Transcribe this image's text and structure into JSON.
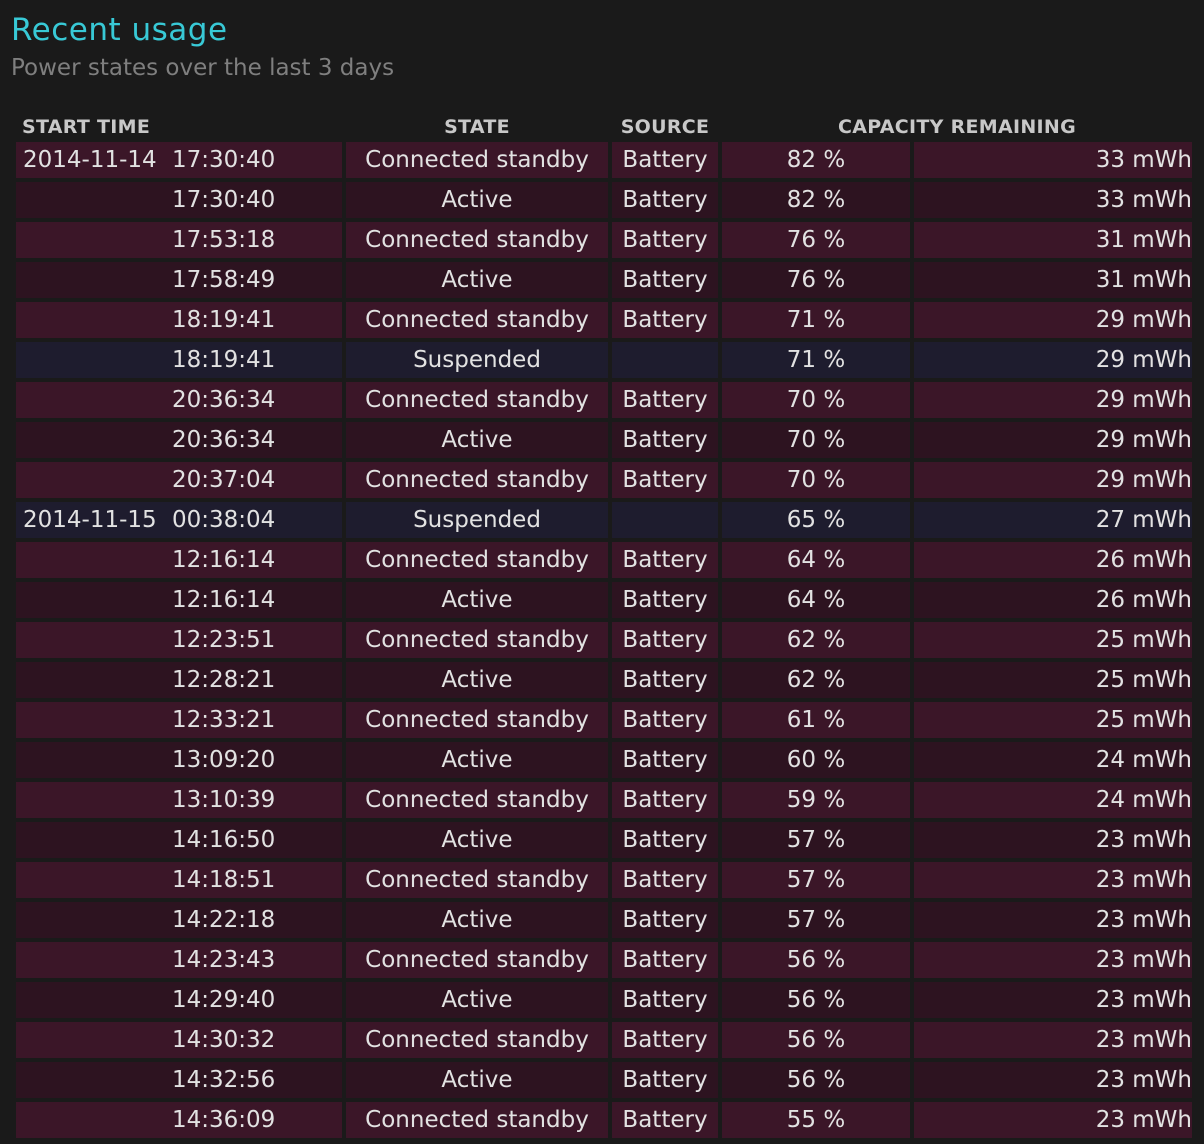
{
  "header": {
    "title": "Recent usage",
    "subtitle": "Power states over the last 3 days"
  },
  "table": {
    "columns": {
      "start_time": "START TIME",
      "state": "STATE",
      "source": "SOURCE",
      "capacity": "CAPACITY REMAINING"
    },
    "rows": [
      {
        "date": "2014-11-14",
        "time": "17:30:40",
        "state": "Connected standby",
        "source": "Battery",
        "percent": "82 %",
        "mwh": "33 mWh"
      },
      {
        "date": "",
        "time": "17:30:40",
        "state": "Active",
        "source": "Battery",
        "percent": "82 %",
        "mwh": "33 mWh"
      },
      {
        "date": "",
        "time": "17:53:18",
        "state": "Connected standby",
        "source": "Battery",
        "percent": "76 %",
        "mwh": "31 mWh"
      },
      {
        "date": "",
        "time": "17:58:49",
        "state": "Active",
        "source": "Battery",
        "percent": "76 %",
        "mwh": "31 mWh"
      },
      {
        "date": "",
        "time": "18:19:41",
        "state": "Connected standby",
        "source": "Battery",
        "percent": "71 %",
        "mwh": "29 mWh"
      },
      {
        "date": "",
        "time": "18:19:41",
        "state": "Suspended",
        "source": "",
        "percent": "71 %",
        "mwh": "29 mWh"
      },
      {
        "date": "",
        "time": "20:36:34",
        "state": "Connected standby",
        "source": "Battery",
        "percent": "70 %",
        "mwh": "29 mWh"
      },
      {
        "date": "",
        "time": "20:36:34",
        "state": "Active",
        "source": "Battery",
        "percent": "70 %",
        "mwh": "29 mWh"
      },
      {
        "date": "",
        "time": "20:37:04",
        "state": "Connected standby",
        "source": "Battery",
        "percent": "70 %",
        "mwh": "29 mWh"
      },
      {
        "date": "2014-11-15",
        "time": "00:38:04",
        "state": "Suspended",
        "source": "",
        "percent": "65 %",
        "mwh": "27 mWh"
      },
      {
        "date": "",
        "time": "12:16:14",
        "state": "Connected standby",
        "source": "Battery",
        "percent": "64 %",
        "mwh": "26 mWh"
      },
      {
        "date": "",
        "time": "12:16:14",
        "state": "Active",
        "source": "Battery",
        "percent": "64 %",
        "mwh": "26 mWh"
      },
      {
        "date": "",
        "time": "12:23:51",
        "state": "Connected standby",
        "source": "Battery",
        "percent": "62 %",
        "mwh": "25 mWh"
      },
      {
        "date": "",
        "time": "12:28:21",
        "state": "Active",
        "source": "Battery",
        "percent": "62 %",
        "mwh": "25 mWh"
      },
      {
        "date": "",
        "time": "12:33:21",
        "state": "Connected standby",
        "source": "Battery",
        "percent": "61 %",
        "mwh": "25 mWh"
      },
      {
        "date": "",
        "time": "13:09:20",
        "state": "Active",
        "source": "Battery",
        "percent": "60 %",
        "mwh": "24 mWh"
      },
      {
        "date": "",
        "time": "13:10:39",
        "state": "Connected standby",
        "source": "Battery",
        "percent": "59 %",
        "mwh": "24 mWh"
      },
      {
        "date": "",
        "time": "14:16:50",
        "state": "Active",
        "source": "Battery",
        "percent": "57 %",
        "mwh": "23 mWh"
      },
      {
        "date": "",
        "time": "14:18:51",
        "state": "Connected standby",
        "source": "Battery",
        "percent": "57 %",
        "mwh": "23 mWh"
      },
      {
        "date": "",
        "time": "14:22:18",
        "state": "Active",
        "source": "Battery",
        "percent": "57 %",
        "mwh": "23 mWh"
      },
      {
        "date": "",
        "time": "14:23:43",
        "state": "Connected standby",
        "source": "Battery",
        "percent": "56 %",
        "mwh": "23 mWh"
      },
      {
        "date": "",
        "time": "14:29:40",
        "state": "Active",
        "source": "Battery",
        "percent": "56 %",
        "mwh": "23 mWh"
      },
      {
        "date": "",
        "time": "14:30:32",
        "state": "Connected standby",
        "source": "Battery",
        "percent": "56 %",
        "mwh": "23 mWh"
      },
      {
        "date": "",
        "time": "14:32:56",
        "state": "Active",
        "source": "Battery",
        "percent": "56 %",
        "mwh": "23 mWh"
      },
      {
        "date": "",
        "time": "14:36:09",
        "state": "Connected standby",
        "source": "Battery",
        "percent": "55 %",
        "mwh": "23 mWh"
      }
    ]
  },
  "colors": {
    "title": "#38c9d6",
    "subtitle": "#7f7f7f",
    "row_standby": "#3b1628",
    "row_active": "#2d1320",
    "row_suspended": "#1e1c2e",
    "background": "#1a1a1a"
  }
}
